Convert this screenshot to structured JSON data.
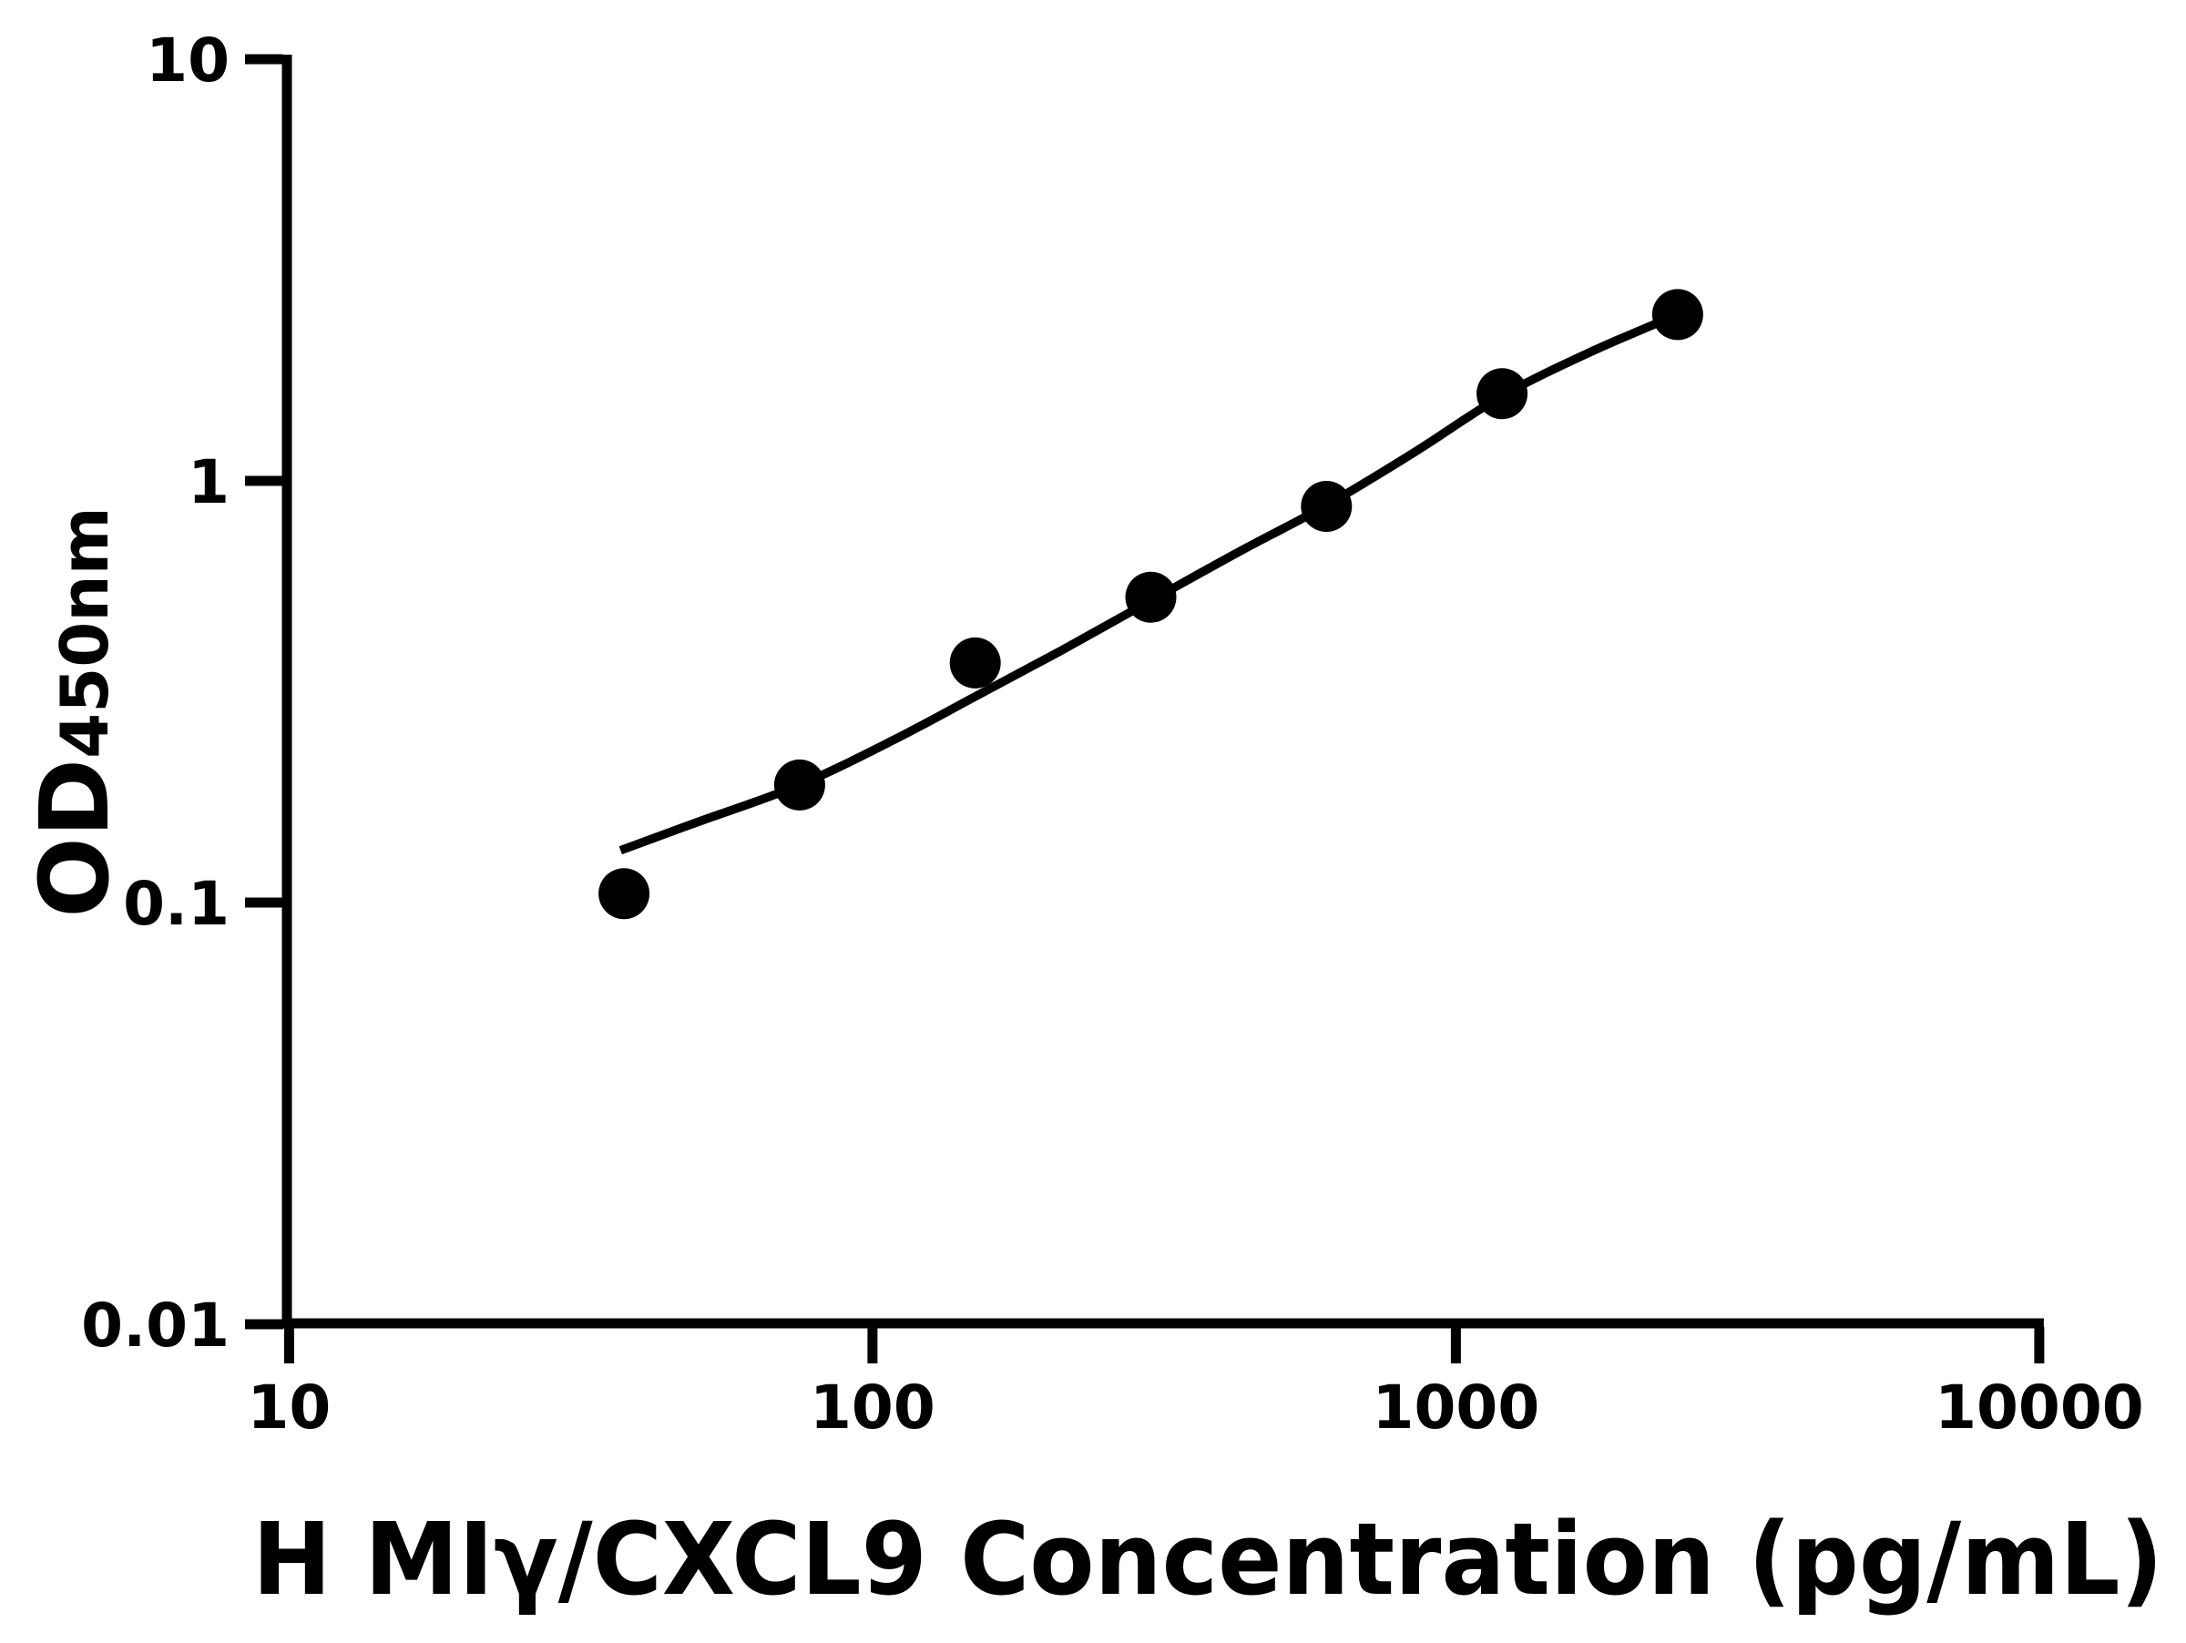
{
  "figure": {
    "background_color": "#ffffff",
    "foreground_color": "#000000"
  },
  "chart_data": {
    "type": "scatter",
    "title": "",
    "xlabel": "H MIγ/CXCL9 Concentration (pg/mL)",
    "ylabel_main": "OD",
    "ylabel_sub": "450nm",
    "x_scale": "log10",
    "y_scale": "log10",
    "xlim": [
      10,
      10000
    ],
    "ylim": [
      0.01,
      10
    ],
    "x_ticks": [
      {
        "value": 10,
        "label": "10"
      },
      {
        "value": 100,
        "label": "100"
      },
      {
        "value": 1000,
        "label": "1000"
      },
      {
        "value": 10000,
        "label": "10000"
      }
    ],
    "y_ticks": [
      {
        "value": 10,
        "label": "10"
      },
      {
        "value": 1,
        "label": "1"
      },
      {
        "value": 0.1,
        "label": "0.1"
      },
      {
        "value": 0.01,
        "label": "0.01"
      }
    ],
    "grid": false,
    "legend": "none",
    "series": [
      {
        "name": "standard-points",
        "kind": "points",
        "marker": "filled-circle",
        "marker_radius_px": 28,
        "color": "#000000",
        "x": [
          37.5,
          75,
          150,
          300,
          600,
          1200,
          2400
        ],
        "y": [
          0.105,
          0.19,
          0.37,
          0.53,
          0.87,
          1.61,
          2.48
        ]
      },
      {
        "name": "fit-curve",
        "kind": "line",
        "stroke_width_px": 9.5,
        "color": "#000000",
        "x": [
          37,
          50,
          75,
          110,
          150,
          210,
          300,
          430,
          600,
          850,
          1200,
          1700,
          2400
        ],
        "y": [
          0.133,
          0.155,
          0.19,
          0.245,
          0.308,
          0.395,
          0.52,
          0.685,
          0.875,
          1.17,
          1.59,
          2.02,
          2.48
        ]
      }
    ]
  }
}
